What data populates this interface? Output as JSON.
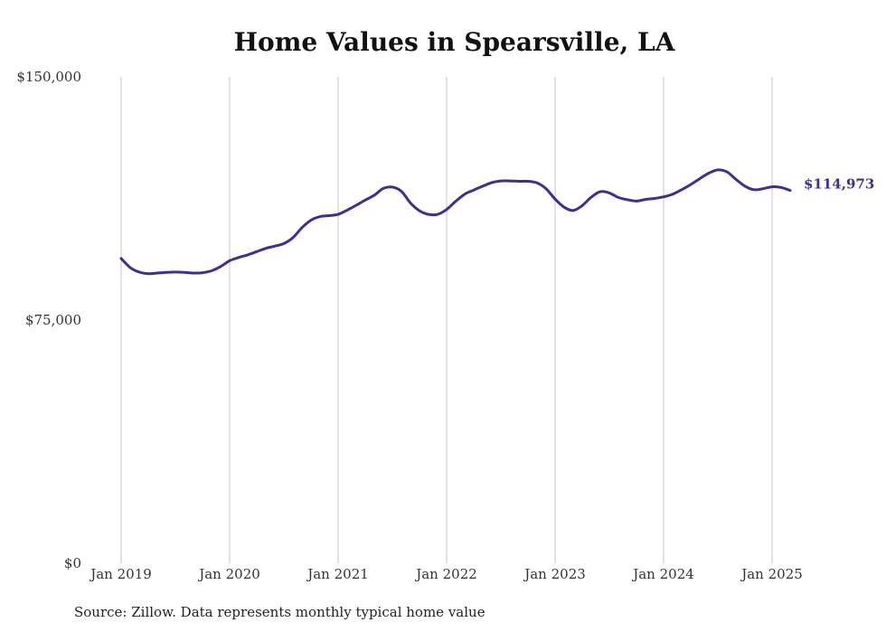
{
  "chart_data": {
    "type": "line",
    "title": "Home Values in Spearsville, LA",
    "ylim": [
      0,
      150000
    ],
    "y_ticks": [
      0,
      75000,
      150000
    ],
    "y_tick_labels": [
      "$0",
      "$75,000",
      "$150,000"
    ],
    "x_tick_labels": [
      "Jan 2019",
      "Jan 2020",
      "Jan 2021",
      "Jan 2022",
      "Jan 2023",
      "Jan 2024",
      "Jan 2025"
    ],
    "grid": "vertical",
    "series": [
      {
        "color": "#3b3190",
        "end_label": "$114,973",
        "x": [
          "2019-01",
          "2019-02",
          "2019-03",
          "2019-04",
          "2019-05",
          "2019-06",
          "2019-07",
          "2019-08",
          "2019-09",
          "2019-10",
          "2019-11",
          "2019-12",
          "2020-01",
          "2020-02",
          "2020-03",
          "2020-04",
          "2020-05",
          "2020-06",
          "2020-07",
          "2020-08",
          "2020-09",
          "2020-10",
          "2020-11",
          "2020-12",
          "2021-01",
          "2021-02",
          "2021-03",
          "2021-04",
          "2021-05",
          "2021-06",
          "2021-07",
          "2021-08",
          "2021-09",
          "2021-10",
          "2021-11",
          "2021-12",
          "2022-01",
          "2022-02",
          "2022-03",
          "2022-04",
          "2022-05",
          "2022-06",
          "2022-07",
          "2022-08",
          "2022-09",
          "2022-10",
          "2022-11",
          "2022-12",
          "2023-01",
          "2023-02",
          "2023-03",
          "2023-04",
          "2023-05",
          "2023-06",
          "2023-07",
          "2023-08",
          "2023-09",
          "2023-10",
          "2023-11",
          "2023-12",
          "2024-01",
          "2024-02",
          "2024-03",
          "2024-04",
          "2024-05",
          "2024-06",
          "2024-07",
          "2024-08",
          "2024-09",
          "2024-10",
          "2024-11",
          "2024-12",
          "2025-01",
          "2025-02",
          "2025-03"
        ],
        "values": [
          94000,
          91200,
          89800,
          89300,
          89500,
          89700,
          89800,
          89700,
          89500,
          89600,
          90200,
          91500,
          93300,
          94300,
          95100,
          96100,
          97100,
          97800,
          98600,
          100400,
          103500,
          105800,
          106900,
          107200,
          107600,
          108900,
          110400,
          112000,
          113500,
          115600,
          116000,
          114700,
          111100,
          108700,
          107600,
          107600,
          109100,
          111600,
          113800,
          115100,
          116300,
          117400,
          117900,
          117900,
          117800,
          117800,
          117300,
          115500,
          112300,
          109800,
          108800,
          110300,
          112900,
          114600,
          114200,
          112800,
          112100,
          111700,
          112200,
          112500,
          113000,
          113800,
          115200,
          116800,
          118600,
          120300,
          121300,
          120700,
          118400,
          116300,
          115200,
          115500,
          116100,
          115900,
          114973
        ]
      }
    ]
  },
  "source": "Source: Zillow. Data represents monthly typical home value"
}
